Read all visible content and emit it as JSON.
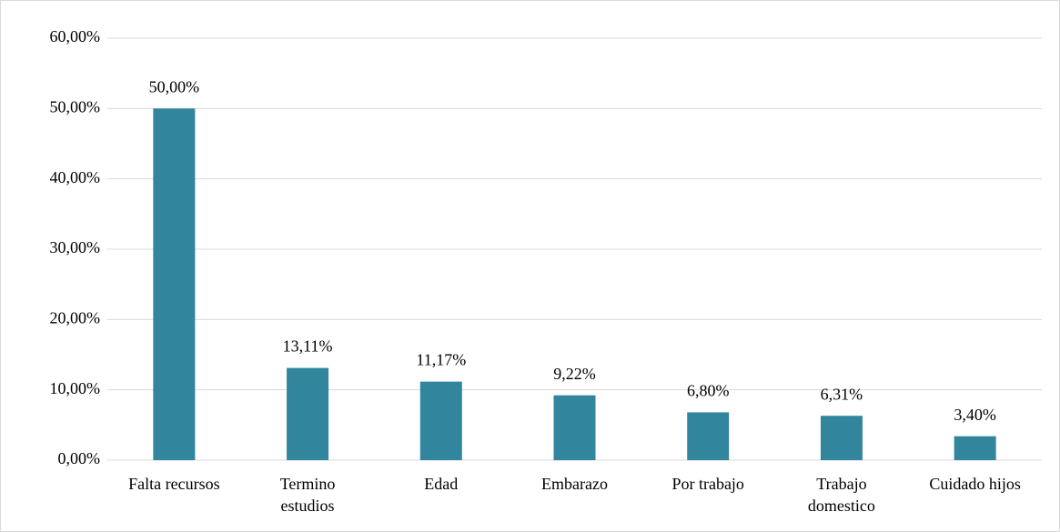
{
  "chart_data": {
    "type": "bar",
    "categories": [
      "Falta recursos",
      "Termino\nestudios",
      "Edad",
      "Embarazo",
      "Por trabajo",
      "Trabajo\ndomestico",
      "Cuidado hijos"
    ],
    "values": [
      50.0,
      13.11,
      11.17,
      9.22,
      6.8,
      6.31,
      3.4
    ],
    "value_labels": [
      "50,00%",
      "13,11%",
      "11,17%",
      "9,22%",
      "6,80%",
      "6,31%",
      "3,40%"
    ],
    "color": "#31859c",
    "ylim": [
      0,
      60
    ],
    "yticks": [
      {
        "value": 0,
        "label": "0,00%"
      },
      {
        "value": 10,
        "label": "10,00%"
      },
      {
        "value": 20,
        "label": "20,00%"
      },
      {
        "value": 30,
        "label": "30,00%"
      },
      {
        "value": 40,
        "label": "40,00%"
      },
      {
        "value": 50,
        "label": "50,00%"
      },
      {
        "value": 60,
        "label": "60,00%"
      }
    ],
    "grid": true
  }
}
